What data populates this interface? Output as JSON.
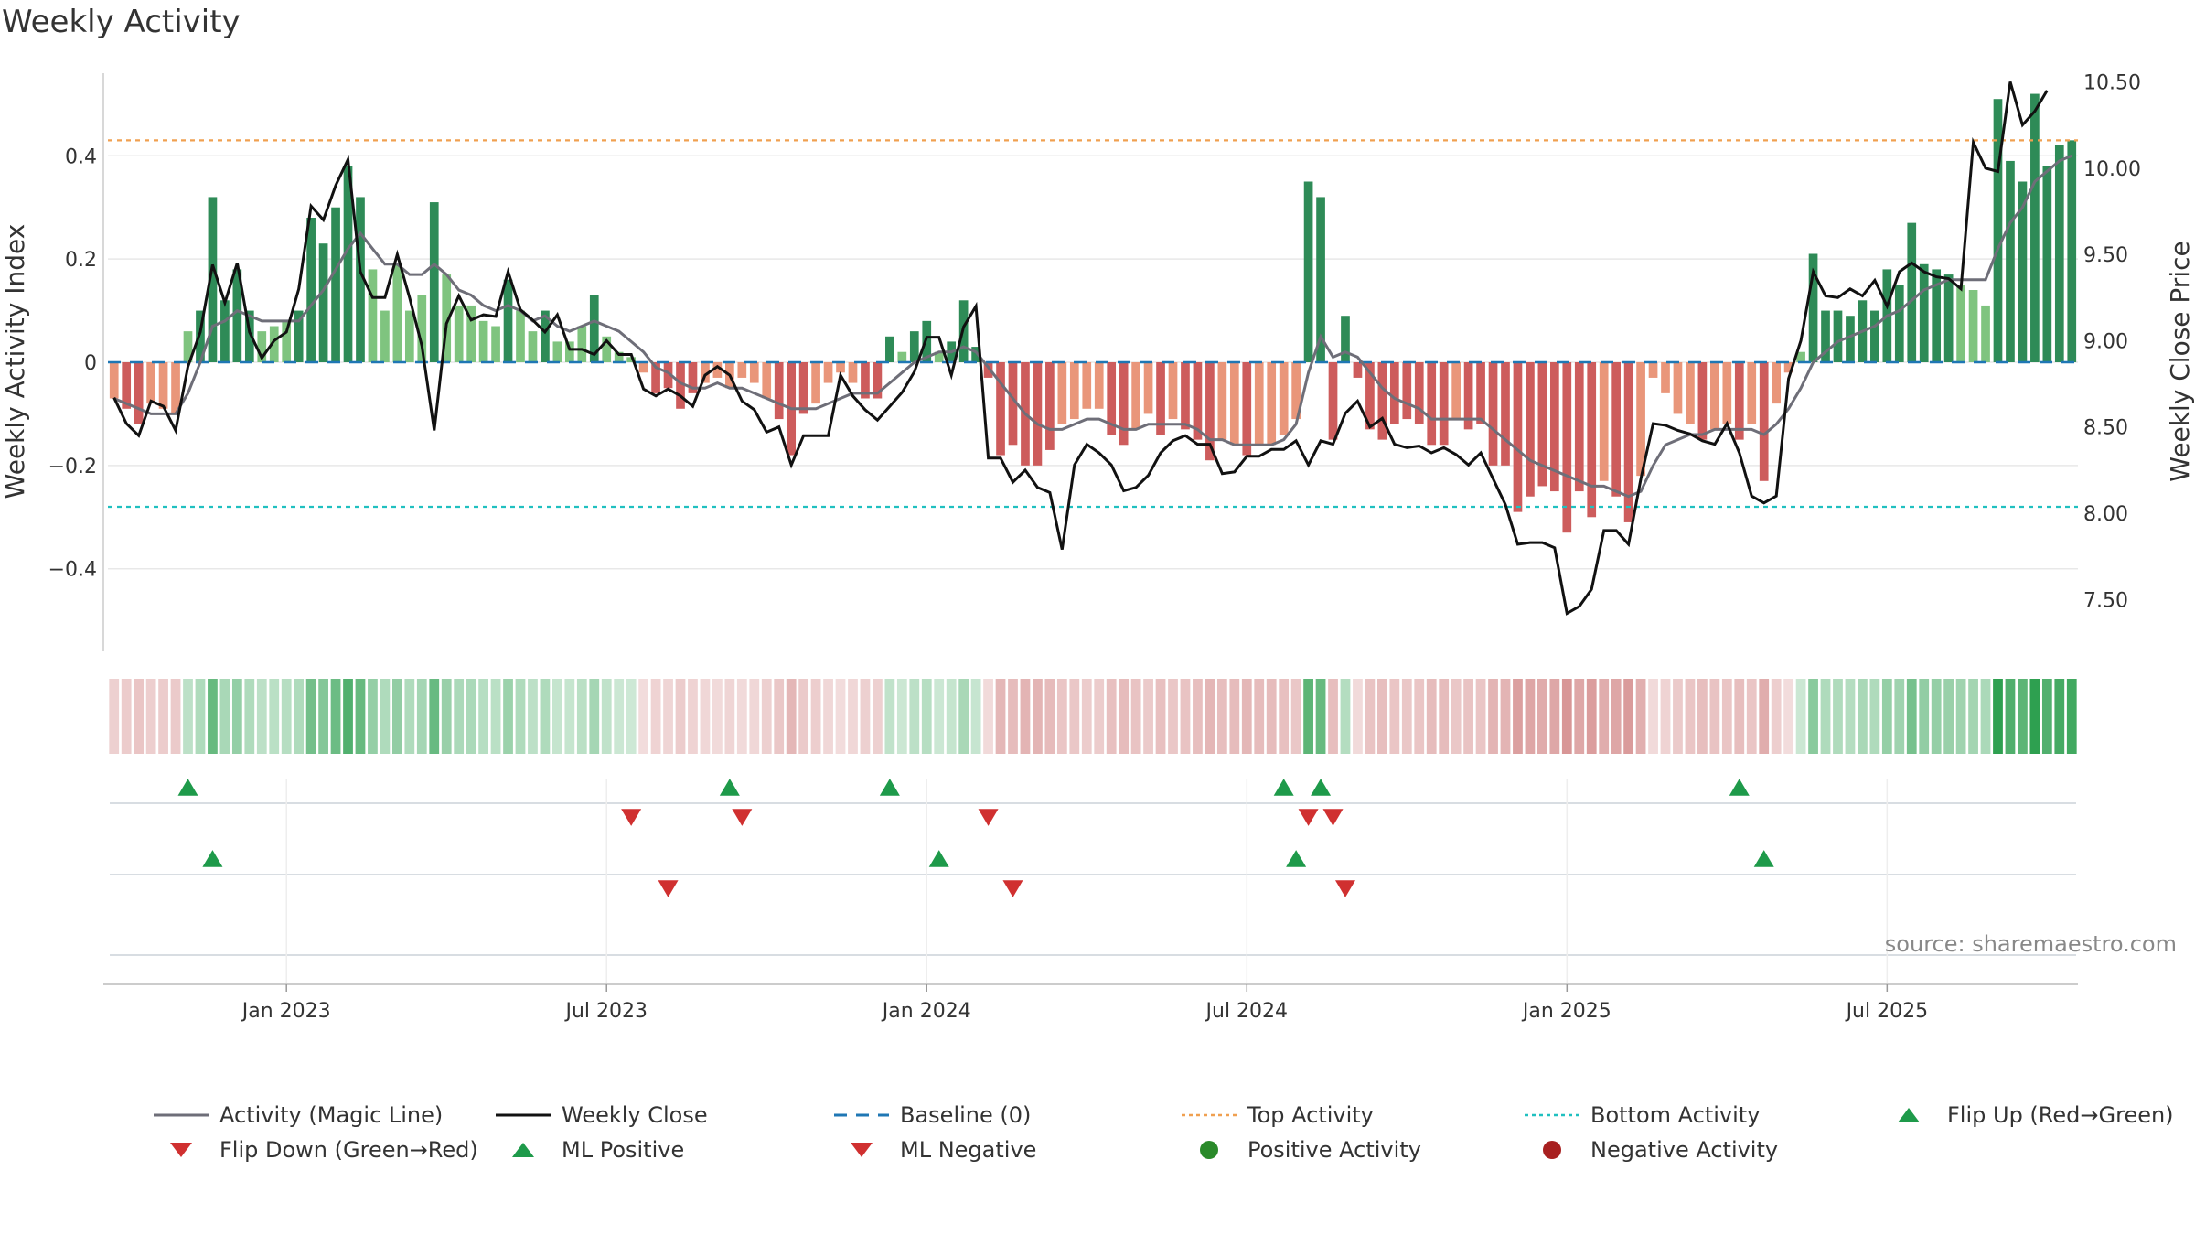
{
  "title": "Weekly Activity",
  "source": "source: sharemaestro.com",
  "colors": {
    "pos_dark": "#2e8b57",
    "pos_light": "#7fc47f",
    "neg_dark": "#cd5c5c",
    "neg_light": "#e9967a",
    "magic_line": "#6e6e78",
    "close_line": "#111111",
    "baseline": "#1f77b4",
    "top": "#f0a050",
    "bottom": "#20c0c0",
    "up": "#1e9a4a",
    "down": "#d03030"
  },
  "legend": [
    {
      "label": "Activity (Magic Line)",
      "symbol": "line",
      "color": "#6e6e78"
    },
    {
      "label": "Weekly Close",
      "symbol": "line",
      "color": "#111111"
    },
    {
      "label": "Baseline (0)",
      "symbol": "dash",
      "color": "#1f77b4"
    },
    {
      "label": "Top Activity",
      "symbol": "dot",
      "color": "#f0a050"
    },
    {
      "label": "Bottom Activity",
      "symbol": "dot",
      "color": "#20c0c0"
    },
    {
      "label": "Flip Up (Red→Green)",
      "symbol": "tri-up",
      "color": "#1e9a4a"
    },
    {
      "label": "Flip Down (Green→Red)",
      "symbol": "tri-down",
      "color": "#d03030"
    },
    {
      "label": "ML Positive",
      "symbol": "tri-up",
      "color": "#1e9a4a"
    },
    {
      "label": "ML Negative",
      "symbol": "tri-down",
      "color": "#d03030"
    },
    {
      "label": "Positive Activity",
      "symbol": "circle",
      "color": "#2a8a2a"
    },
    {
      "label": "Negative Activity",
      "symbol": "circle",
      "color": "#a82020"
    }
  ],
  "chart_data": {
    "type": "bar",
    "title": "Weekly Activity",
    "ylabel": "Weekly Activity Index",
    "y2label": "Weekly Close Price",
    "ylim": [
      -0.56,
      0.56
    ],
    "y2lim": [
      7.2,
      10.55
    ],
    "yticks": [
      -0.4,
      -0.2,
      0,
      0.2,
      0.4
    ],
    "ytick_labels": [
      "−0.4",
      "−0.2",
      "0",
      "0.2",
      "0.4"
    ],
    "y2ticks": [
      7.5,
      8.0,
      8.5,
      9.0,
      9.5,
      10.0,
      10.5
    ],
    "y2tick_labels": [
      "7.50",
      "8.00",
      "8.50",
      "9.00",
      "9.50",
      "10.00",
      "10.50"
    ],
    "x_start": "2022-09-26",
    "x_interval_weeks": 1,
    "x_ticks": [
      {
        "week": 14.5,
        "label": "Jan 2023"
      },
      {
        "week": 40.5,
        "label": "Jul 2023"
      },
      {
        "week": 66.5,
        "label": "Jan 2024"
      },
      {
        "week": 92.5,
        "label": "Jul 2024"
      },
      {
        "week": 118.5,
        "label": "Jan 2025"
      },
      {
        "week": 144.5,
        "label": "Jul 2025"
      }
    ],
    "top_activity": 0.43,
    "bottom_activity": -0.28,
    "baseline": 0,
    "activity": [
      -0.07,
      -0.09,
      -0.12,
      -0.08,
      -0.09,
      -0.1,
      0.06,
      0.1,
      0.32,
      0.12,
      0.18,
      0.1,
      0.06,
      0.07,
      0.08,
      0.1,
      0.28,
      0.23,
      0.3,
      0.38,
      0.32,
      0.18,
      0.1,
      0.19,
      0.1,
      0.13,
      0.31,
      0.17,
      0.11,
      0.11,
      0.08,
      0.07,
      0.16,
      0.1,
      0.06,
      0.1,
      0.04,
      0.04,
      0.07,
      0.13,
      0.05,
      0.02,
      0.01,
      -0.02,
      -0.06,
      -0.05,
      -0.09,
      -0.06,
      -0.04,
      -0.03,
      -0.05,
      -0.03,
      -0.04,
      -0.07,
      -0.11,
      -0.18,
      -0.1,
      -0.08,
      -0.04,
      -0.02,
      -0.04,
      -0.07,
      -0.07,
      0.05,
      0.02,
      0.06,
      0.08,
      0.02,
      0.04,
      0.12,
      0.03,
      -0.03,
      -0.18,
      -0.16,
      -0.2,
      -0.2,
      -0.17,
      -0.12,
      -0.11,
      -0.09,
      -0.09,
      -0.14,
      -0.16,
      -0.13,
      -0.1,
      -0.14,
      -0.11,
      -0.13,
      -0.15,
      -0.19,
      -0.15,
      -0.16,
      -0.18,
      -0.16,
      -0.16,
      -0.14,
      -0.11,
      0.35,
      0.32,
      -0.15,
      0.09,
      -0.03,
      -0.13,
      -0.15,
      -0.12,
      -0.11,
      -0.12,
      -0.16,
      -0.16,
      -0.11,
      -0.13,
      -0.12,
      -0.2,
      -0.2,
      -0.29,
      -0.26,
      -0.24,
      -0.25,
      -0.33,
      -0.25,
      -0.3,
      -0.23,
      -0.26,
      -0.31,
      -0.22,
      -0.03,
      -0.06,
      -0.1,
      -0.12,
      -0.15,
      -0.13,
      -0.12,
      -0.15,
      -0.12,
      -0.23,
      -0.08,
      -0.02,
      0.02,
      0.21,
      0.1,
      0.1,
      0.09,
      0.12,
      0.1,
      0.18,
      0.15,
      0.27,
      0.19,
      0.18,
      0.17,
      0.15,
      0.14,
      0.11,
      0.51,
      0.39,
      0.35,
      0.52,
      0.38,
      0.42,
      0.43
    ],
    "magic_line": [
      -0.07,
      -0.08,
      -0.09,
      -0.1,
      -0.1,
      -0.1,
      -0.06,
      0.0,
      0.07,
      0.08,
      0.1,
      0.09,
      0.08,
      0.08,
      0.08,
      0.08,
      0.11,
      0.14,
      0.18,
      0.22,
      0.25,
      0.22,
      0.19,
      0.19,
      0.17,
      0.17,
      0.19,
      0.17,
      0.14,
      0.13,
      0.11,
      0.1,
      0.11,
      0.1,
      0.08,
      0.09,
      0.07,
      0.06,
      0.07,
      0.08,
      0.07,
      0.06,
      0.04,
      0.02,
      -0.01,
      -0.02,
      -0.04,
      -0.05,
      -0.05,
      -0.04,
      -0.05,
      -0.05,
      -0.06,
      -0.07,
      -0.08,
      -0.09,
      -0.09,
      -0.09,
      -0.08,
      -0.07,
      -0.06,
      -0.06,
      -0.06,
      -0.04,
      -0.02,
      0.0,
      0.01,
      0.02,
      0.02,
      0.03,
      0.02,
      -0.01,
      -0.04,
      -0.07,
      -0.1,
      -0.12,
      -0.13,
      -0.13,
      -0.12,
      -0.11,
      -0.11,
      -0.12,
      -0.13,
      -0.13,
      -0.12,
      -0.12,
      -0.12,
      -0.12,
      -0.13,
      -0.15,
      -0.15,
      -0.16,
      -0.16,
      -0.16,
      -0.16,
      -0.15,
      -0.12,
      -0.02,
      0.05,
      0.01,
      0.02,
      0.01,
      -0.02,
      -0.05,
      -0.07,
      -0.08,
      -0.09,
      -0.11,
      -0.11,
      -0.11,
      -0.11,
      -0.11,
      -0.13,
      -0.15,
      -0.17,
      -0.19,
      -0.2,
      -0.21,
      -0.22,
      -0.23,
      -0.24,
      -0.24,
      -0.25,
      -0.26,
      -0.25,
      -0.2,
      -0.16,
      -0.15,
      -0.14,
      -0.14,
      -0.13,
      -0.13,
      -0.13,
      -0.13,
      -0.14,
      -0.12,
      -0.09,
      -0.05,
      0.0,
      0.02,
      0.04,
      0.05,
      0.06,
      0.07,
      0.09,
      0.1,
      0.12,
      0.14,
      0.15,
      0.16,
      0.16,
      0.16,
      0.16,
      0.22,
      0.27,
      0.3,
      0.35,
      0.37,
      0.39,
      0.4
    ],
    "close": [
      8.67,
      8.52,
      8.45,
      8.65,
      8.62,
      8.48,
      8.85,
      9.05,
      9.44,
      9.22,
      9.45,
      9.05,
      8.9,
      9.0,
      9.05,
      9.3,
      9.78,
      9.7,
      9.9,
      10.05,
      9.4,
      9.25,
      9.25,
      9.5,
      9.25,
      8.97,
      8.48,
      9.1,
      9.26,
      9.12,
      9.15,
      9.14,
      9.4,
      9.18,
      9.12,
      9.05,
      9.15,
      8.95,
      8.95,
      8.92,
      9.0,
      8.92,
      8.92,
      8.72,
      8.68,
      8.72,
      8.68,
      8.62,
      8.8,
      8.85,
      8.8,
      8.65,
      8.6,
      8.47,
      8.5,
      8.28,
      8.45,
      8.45,
      8.45,
      8.8,
      8.68,
      8.6,
      8.54,
      8.62,
      8.7,
      8.82,
      9.02,
      9.02,
      8.8,
      9.08,
      9.2,
      8.32,
      8.32,
      8.18,
      8.25,
      8.15,
      8.12,
      7.79,
      8.28,
      8.4,
      8.35,
      8.28,
      8.13,
      8.15,
      8.22,
      8.35,
      8.42,
      8.45,
      8.4,
      8.4,
      8.23,
      8.24,
      8.33,
      8.33,
      8.37,
      8.37,
      8.42,
      8.28,
      8.42,
      8.4,
      8.58,
      8.65,
      8.5,
      8.55,
      8.4,
      8.38,
      8.39,
      8.35,
      8.38,
      8.34,
      8.28,
      8.35,
      8.2,
      8.05,
      7.82,
      7.83,
      7.83,
      7.8,
      7.42,
      7.46,
      7.56,
      7.9,
      7.9,
      7.82,
      8.2,
      8.52,
      8.51,
      8.48,
      8.46,
      8.42,
      8.4,
      8.52,
      8.35,
      8.1,
      8.06,
      8.1,
      8.78,
      9.0,
      9.4,
      9.26,
      9.25,
      9.3,
      9.26,
      9.35,
      9.2,
      9.4,
      9.45,
      9.4,
      9.37,
      9.36,
      9.3,
      10.15,
      10.0,
      9.98,
      10.5,
      10.25,
      10.33,
      10.45
    ],
    "heat_strip_intensity": "equals activity (green positive, red negative)",
    "flip_up_weeks": [
      6,
      50,
      63,
      95,
      98,
      132
    ],
    "flip_down_weeks": [
      42,
      51,
      71,
      97,
      99
    ],
    "ml_positive_weeks": [
      8,
      67,
      96,
      134
    ],
    "ml_negative_weeks": [
      45,
      73,
      100
    ]
  }
}
